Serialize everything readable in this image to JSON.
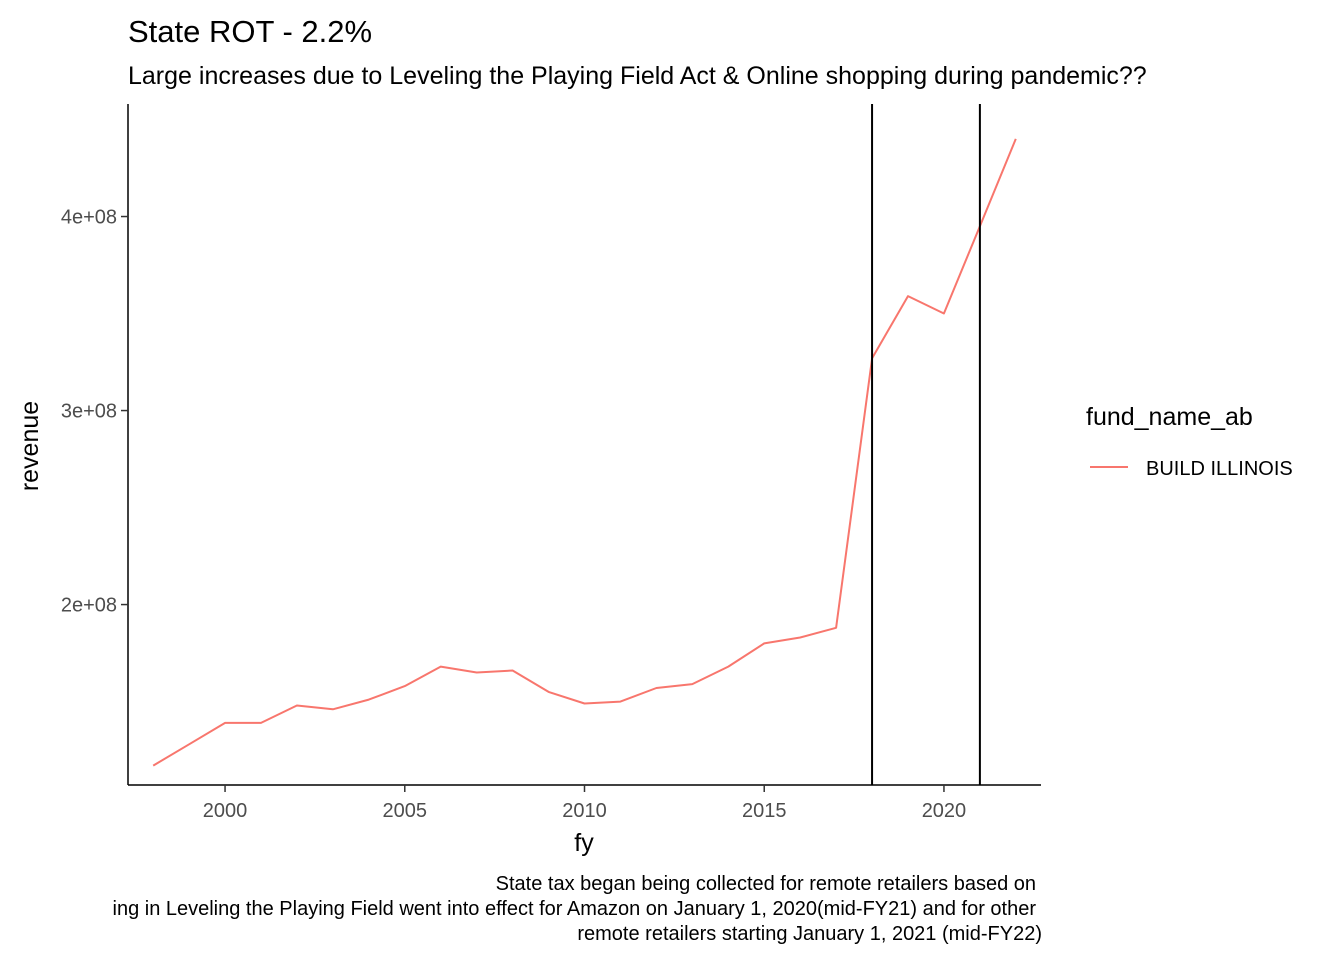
{
  "chart_data": {
    "type": "line",
    "title": "State ROT - 2.2%",
    "subtitle": "Large increases due to Leveling the Playing Field Act & Online shopping during pandemic??",
    "xlabel": "fy",
    "ylabel": "revenue",
    "xlim": [
      1997.3,
      2022.7
    ],
    "ylim": [
      107000000,
      458000000
    ],
    "x_ticks": [
      2000,
      2005,
      2010,
      2015,
      2020
    ],
    "y_ticks": [
      200000000,
      300000000,
      400000000
    ],
    "y_tick_labels": [
      "2e+08",
      "3e+08",
      "4e+08"
    ],
    "grid": false,
    "legend": {
      "title": "fund_name_ab",
      "position": "right"
    },
    "series": [
      {
        "name": "BUILD ILLINOIS",
        "color": "#F8766D",
        "x": [
          1998,
          1999,
          2000,
          2001,
          2002,
          2003,
          2004,
          2005,
          2006,
          2007,
          2008,
          2009,
          2010,
          2011,
          2012,
          2013,
          2014,
          2015,
          2016,
          2017,
          2018,
          2019,
          2020,
          2021,
          2022
        ],
        "values": [
          117000000,
          128000000,
          139000000,
          139000000,
          148000000,
          146000000,
          151000000,
          158000000,
          168000000,
          165000000,
          166000000,
          155000000,
          149000000,
          150000000,
          157000000,
          159000000,
          168000000,
          180000000,
          183000000,
          188000000,
          327000000,
          359000000,
          350000000,
          395000000,
          440000000
        ]
      }
    ],
    "vlines": [
      2018,
      2021
    ],
    "caption_lines": [
      "State tax began being collected for remote retailers based on",
      "ing in Leveling the Playing Field went into effect for Amazon on January 1, 2020(mid-FY21) and for other",
      "remote retailers starting January 1, 2021 (mid-FY22)"
    ]
  }
}
